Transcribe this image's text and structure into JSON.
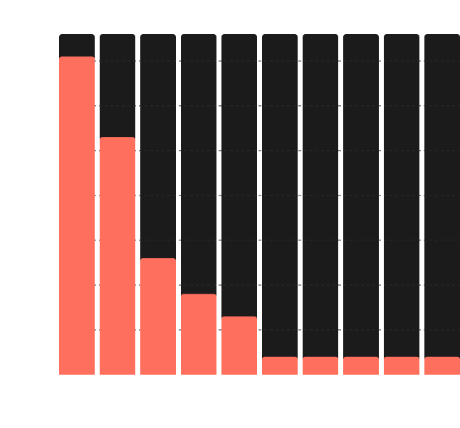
{
  "chart_data": {
    "type": "bar",
    "categories": [
      null,
      null,
      null,
      null,
      null,
      null,
      null,
      null,
      null,
      null
    ],
    "values": [
      7.1,
      5.3,
      2.6,
      1.8,
      1.3,
      0.4,
      0.4,
      0.4,
      0.4,
      0.4
    ],
    "color": "#ff6f5e",
    "track_color": "#1b1b1b",
    "ylim": [
      0,
      7.6
    ],
    "yticks": [
      1,
      2,
      3,
      4,
      5,
      6,
      7
    ],
    "grid": true
  }
}
